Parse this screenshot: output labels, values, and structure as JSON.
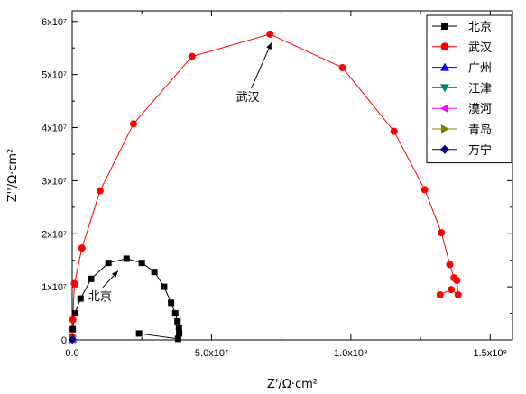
{
  "chart_data": {
    "type": "scatter",
    "xlabel": "Z'/Ω·cm²",
    "ylabel": "Z''/Ω·cm²",
    "xlim": [
      0,
      158000000
    ],
    "ylim": [
      0,
      62000000
    ],
    "grid": false,
    "legend_position": "top-right",
    "x_ticks": [
      {
        "value": 0,
        "label": "0.0"
      },
      {
        "value": 50000000,
        "label": "5.0x10⁷"
      },
      {
        "value": 100000000,
        "label": "1.0x10⁸"
      },
      {
        "value": 150000000,
        "label": "1.5x10⁸"
      }
    ],
    "y_ticks": [
      {
        "value": 0,
        "label": "0"
      },
      {
        "value": 10000000,
        "label": "1x10⁷"
      },
      {
        "value": 20000000,
        "label": "2x10⁷"
      },
      {
        "value": 30000000,
        "label": "3x10⁷"
      },
      {
        "value": 40000000,
        "label": "4x10⁷"
      },
      {
        "value": 50000000,
        "label": "5x10⁷"
      },
      {
        "value": 60000000,
        "label": "6x10⁷"
      }
    ],
    "series": [
      {
        "name": "北京",
        "color": "#000000",
        "marker": "square",
        "x": [
          24000000,
          38000000,
          38400000,
          38300000,
          37800000,
          37000000,
          35500000,
          33000000,
          29500000,
          25000000,
          19500000,
          13000000,
          6800000,
          3000000,
          1000000,
          200000
        ],
        "y": [
          1200000,
          200000,
          1200000,
          2300000,
          3500000,
          5000000,
          7000000,
          10000000,
          12800000,
          14500000,
          15300000,
          14500000,
          11500000,
          7800000,
          5000000,
          2000000
        ]
      },
      {
        "name": "武汉",
        "color": "#ff0000",
        "marker": "circle",
        "x": [
          132000000,
          136000000,
          138500000,
          138000000,
          137000000,
          135500000,
          132500000,
          126500000,
          115500000,
          97000000,
          71000000,
          43000000,
          22000000,
          10000000,
          3500000,
          800000,
          200000,
          0
        ],
        "y": [
          8500000,
          9500000,
          8500000,
          11200000,
          11700000,
          14200000,
          20200000,
          28300000,
          39300000,
          51300000,
          57600000,
          53400000,
          40700000,
          28100000,
          17300000,
          10600000,
          3800000,
          600000
        ]
      },
      {
        "name": "广州",
        "color": "#0000ff",
        "marker": "triangle-up",
        "x": [
          50000,
          100000,
          150000
        ],
        "y": [
          100000,
          200000,
          100000
        ]
      },
      {
        "name": "江津",
        "color": "#008080",
        "marker": "triangle-down",
        "x": [
          60000,
          120000
        ],
        "y": [
          100000,
          150000
        ]
      },
      {
        "name": "漠河",
        "color": "#ff00ff",
        "marker": "triangle-left",
        "x": [
          80000,
          150000
        ],
        "y": [
          150000,
          100000
        ]
      },
      {
        "name": "青岛",
        "color": "#808000",
        "marker": "triangle-right",
        "x": [
          70000,
          140000
        ],
        "y": [
          120000,
          80000
        ]
      },
      {
        "name": "万宁",
        "color": "#000080",
        "marker": "diamond",
        "x": [
          50000,
          100000
        ],
        "y": [
          50000,
          100000
        ]
      }
    ],
    "annotations": [
      {
        "text": "武汉",
        "x": 63000000,
        "y": 45000000,
        "arrow_to_x": 71500000,
        "arrow_to_y": 56000000
      },
      {
        "text": "北京",
        "x": 10000000,
        "y": 7500000,
        "arrow_to_x": 16500000,
        "arrow_to_y": 13000000
      }
    ]
  }
}
